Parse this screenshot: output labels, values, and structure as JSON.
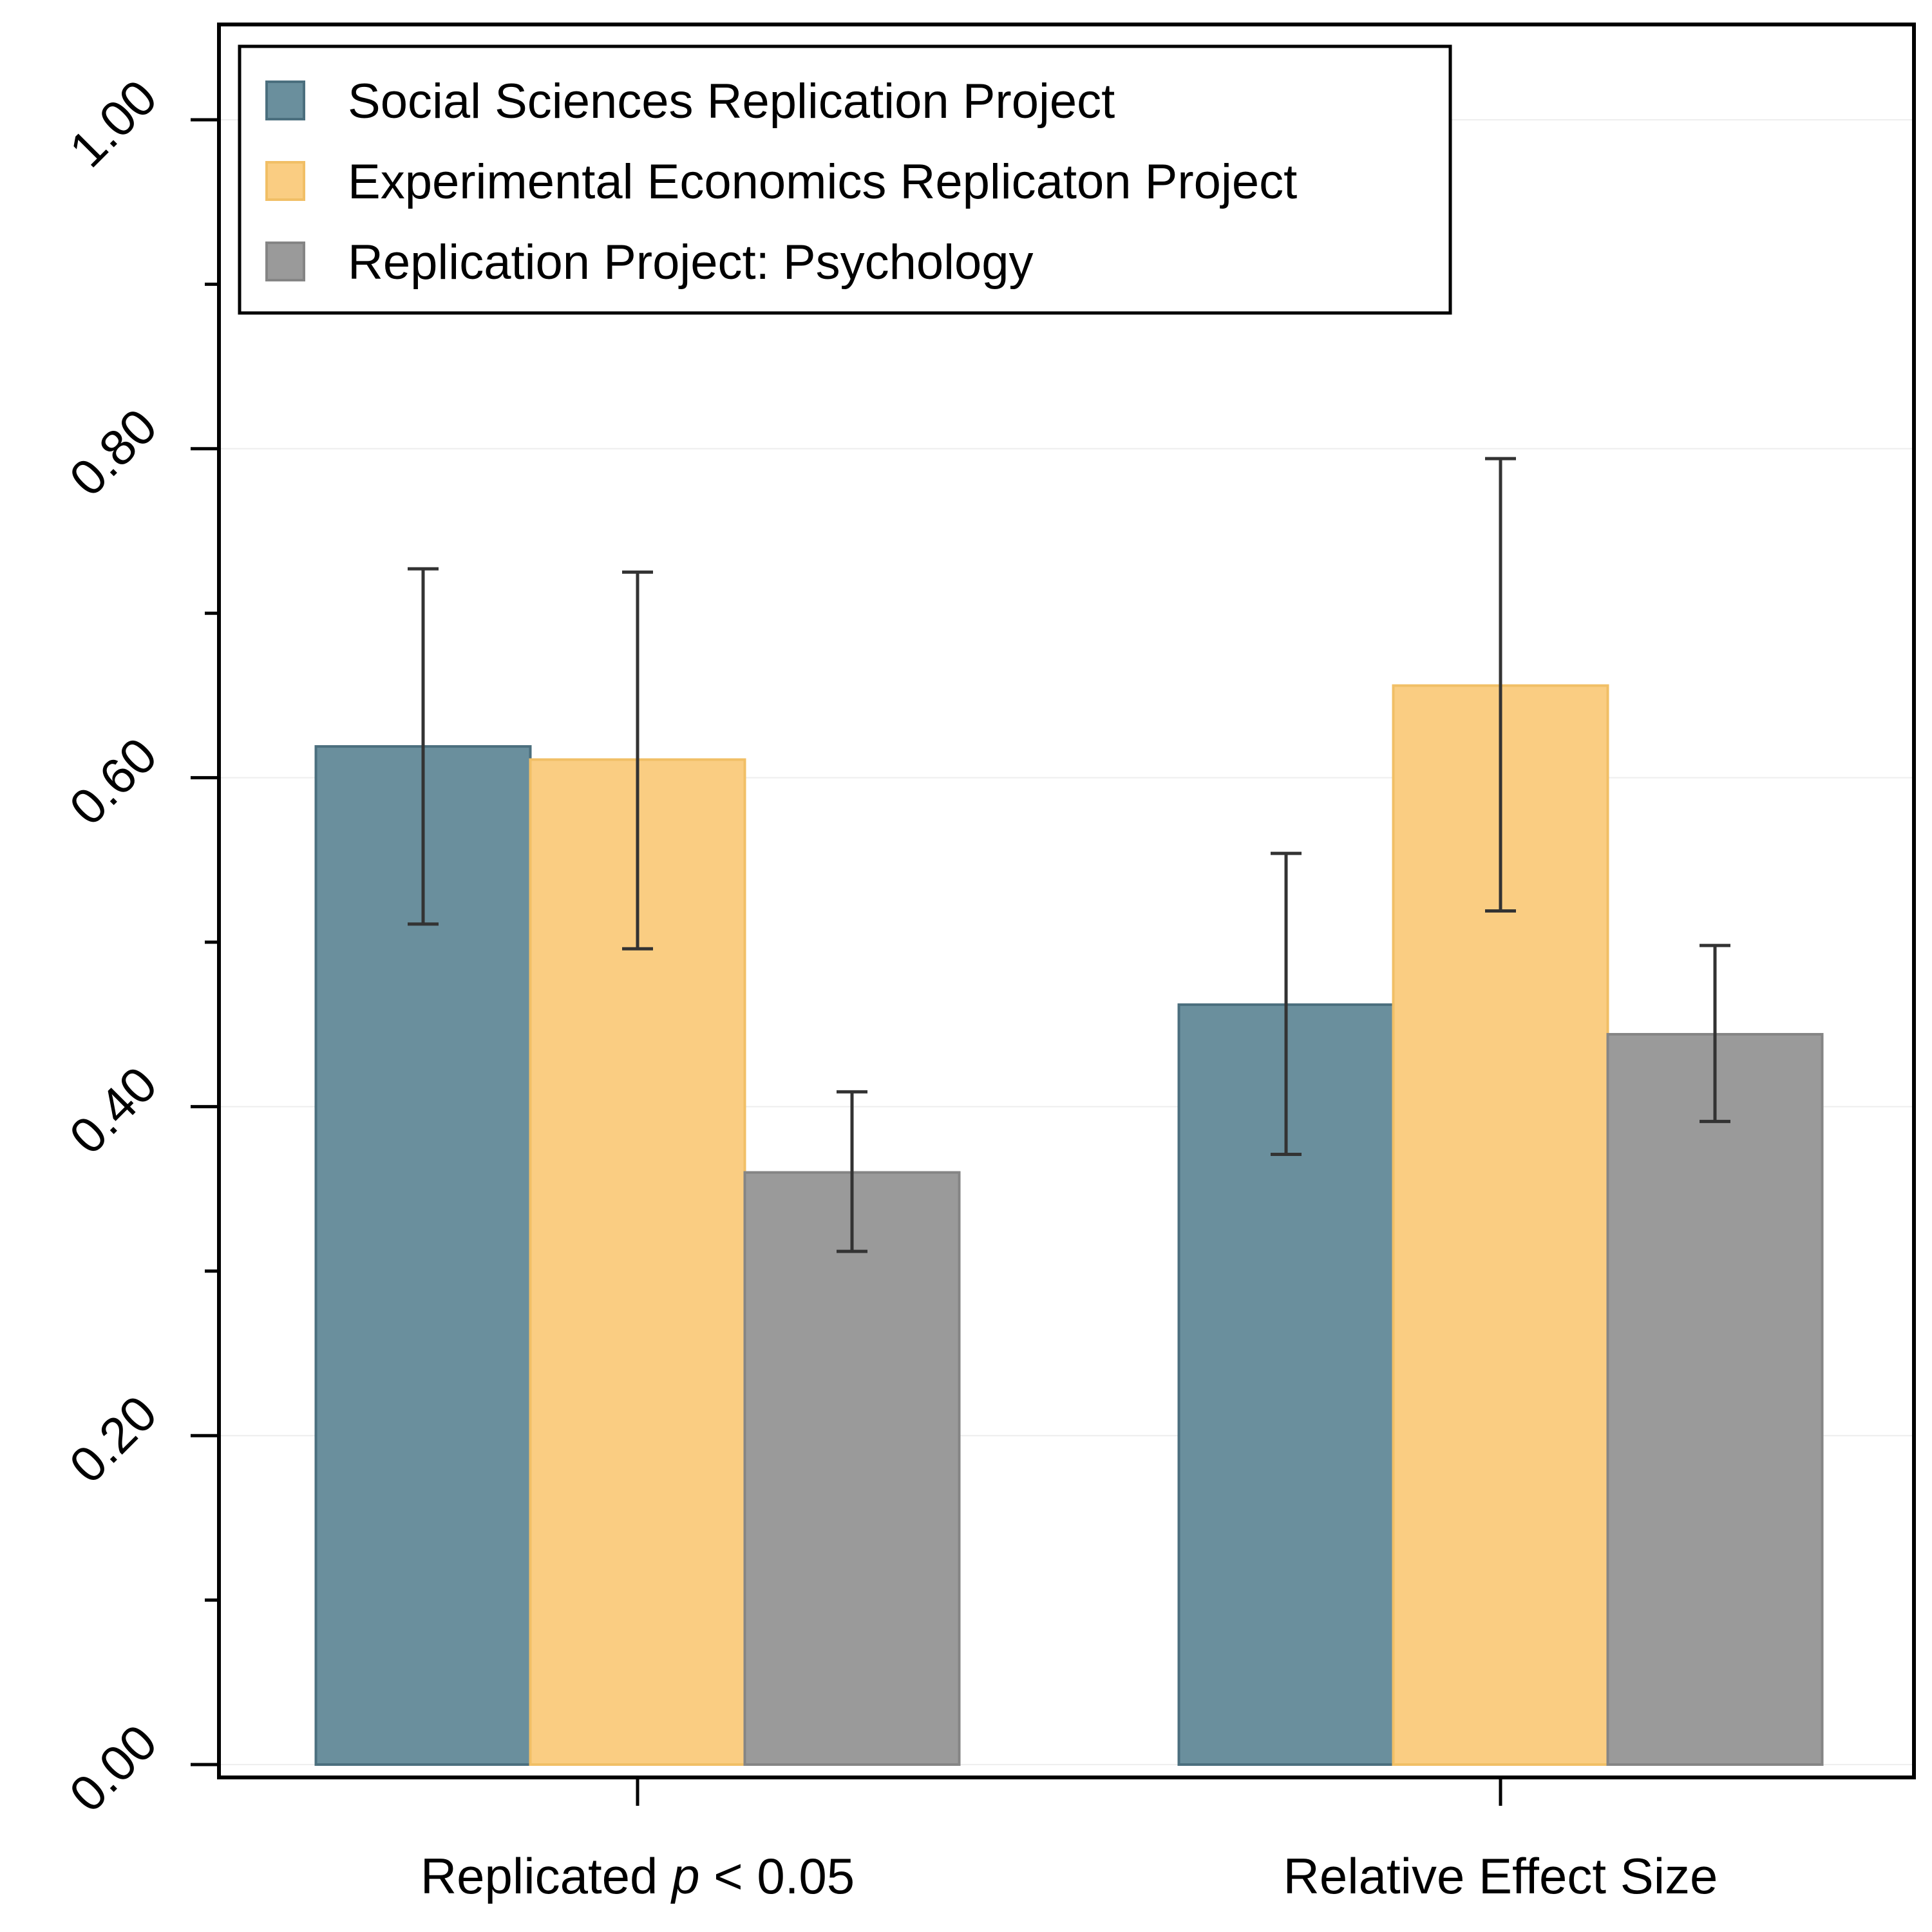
{
  "chart_data": {
    "type": "bar",
    "categories": [
      {
        "prefix": "Replicated ",
        "italic": "p",
        "suffix": " < 0.05"
      },
      {
        "prefix": "Relative Effect Size",
        "italic": "",
        "suffix": ""
      }
    ],
    "series": [
      {
        "name": "Social Sciences Replication Project",
        "color": "#6a8f9d",
        "edge": "#4b6f7e",
        "values": [
          0.619,
          0.462
        ],
        "ci_low": [
          0.511,
          0.371
        ],
        "ci_high": [
          0.727,
          0.554
        ]
      },
      {
        "name": "Experimental Economics Replicaton Project",
        "color": "#facd82",
        "edge": "#f1bf66",
        "values": [
          0.611,
          0.656
        ],
        "ci_low": [
          0.496,
          0.519
        ],
        "ci_high": [
          0.725,
          0.794
        ]
      },
      {
        "name": "Replication Project: Psychology",
        "color": "#9a9a9a",
        "edge": "#858585",
        "values": [
          0.36,
          0.444
        ],
        "ci_low": [
          0.312,
          0.391
        ],
        "ci_high": [
          0.409,
          0.498
        ]
      }
    ],
    "ylim": [
      0,
      1.06
    ],
    "yticks_major": [
      "0.00",
      "0.20",
      "0.40",
      "0.60",
      "0.80",
      "1.00"
    ],
    "yticks_minor": [
      0.1,
      0.3,
      0.5,
      0.7,
      0.9
    ],
    "grid": true,
    "legend_position": "top-left",
    "title": "",
    "xlabel": "",
    "ylabel": ""
  }
}
